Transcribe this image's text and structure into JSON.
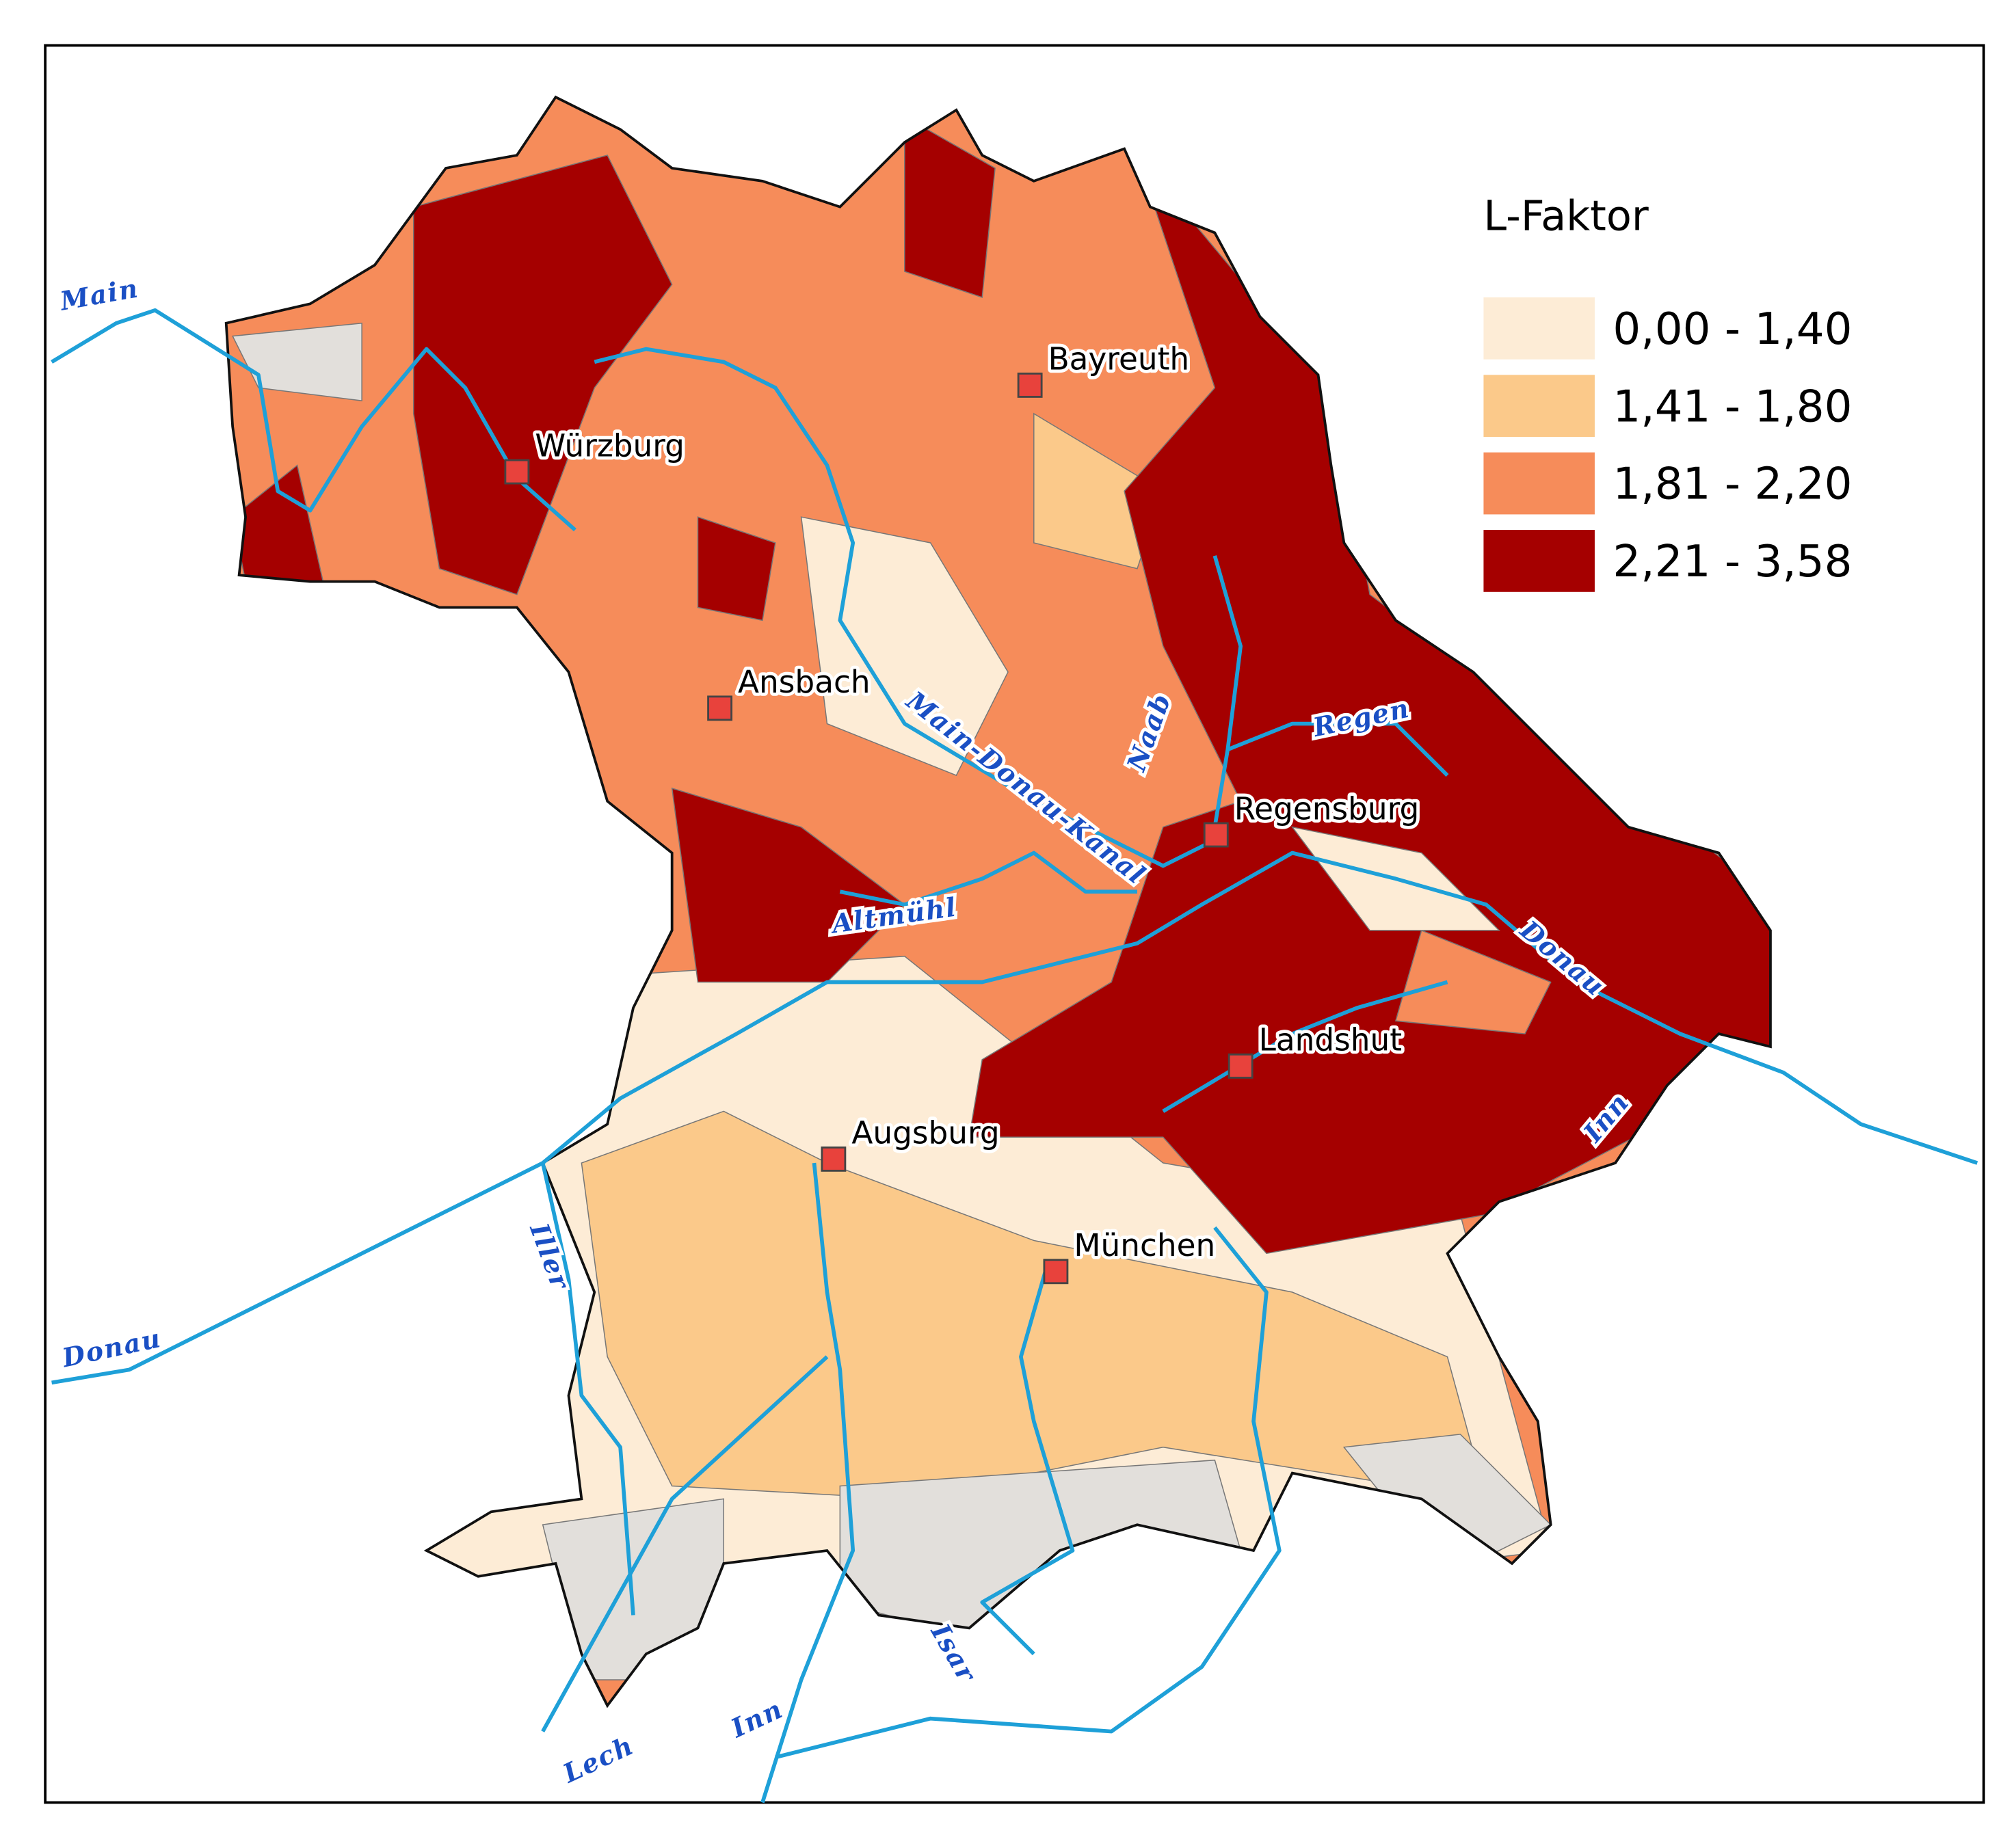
{
  "legend": {
    "title": "L-Faktor",
    "items": [
      {
        "label": "0,00 - 1,40",
        "color": "#fdecd6"
      },
      {
        "label": "1,41 - 1,80",
        "color": "#fbc98a"
      },
      {
        "label": "1,81 - 2,20",
        "color": "#f68c5a"
      },
      {
        "label": "2,21 - 3,58",
        "color": "#a50000"
      }
    ]
  },
  "cities": [
    "Bayreuth",
    "Würzburg",
    "Ansbach",
    "Regensburg",
    "Landshut",
    "Augsburg",
    "München"
  ],
  "rivers": [
    "Main",
    "Main-Donau-Kanal",
    "Naab",
    "Regen",
    "Altmühl",
    "Donau",
    "Inn",
    "Iller",
    "Donau",
    "Lech",
    "Inn",
    "Isar"
  ]
}
